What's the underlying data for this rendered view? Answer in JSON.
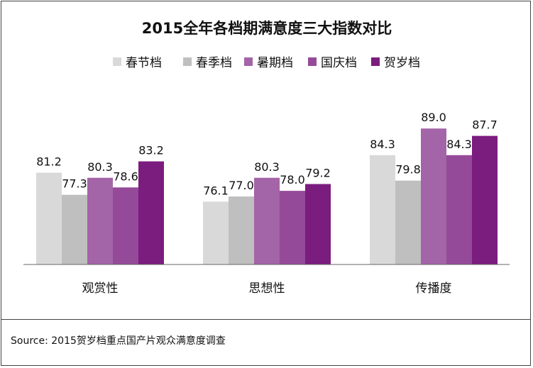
{
  "chart_data": {
    "type": "bar",
    "title": "2015全年各档期满意度三大指数对比",
    "categories": [
      "观赏性",
      "思想性",
      "传播度"
    ],
    "series": [
      {
        "name": "春节档",
        "color": "#d9d9d9",
        "values": [
          81.2,
          76.1,
          84.3
        ]
      },
      {
        "name": "春季档",
        "color": "#bfbfbf",
        "values": [
          77.3,
          77.0,
          79.8
        ]
      },
      {
        "name": "暑期档",
        "color": "#a464a8",
        "values": [
          80.3,
          80.3,
          89.0
        ]
      },
      {
        "name": "国庆档",
        "color": "#954a99",
        "values": [
          78.6,
          78.0,
          84.3
        ]
      },
      {
        "name": "贺岁档",
        "color": "#7b1c7f",
        "values": [
          83.2,
          79.2,
          87.7
        ]
      }
    ],
    "xlabel": "",
    "ylabel": "",
    "ylim": [
      65,
      90
    ],
    "grid": false,
    "legend": "top"
  },
  "source": "Source: 2015贺岁档重点国产片观众满意度调查"
}
